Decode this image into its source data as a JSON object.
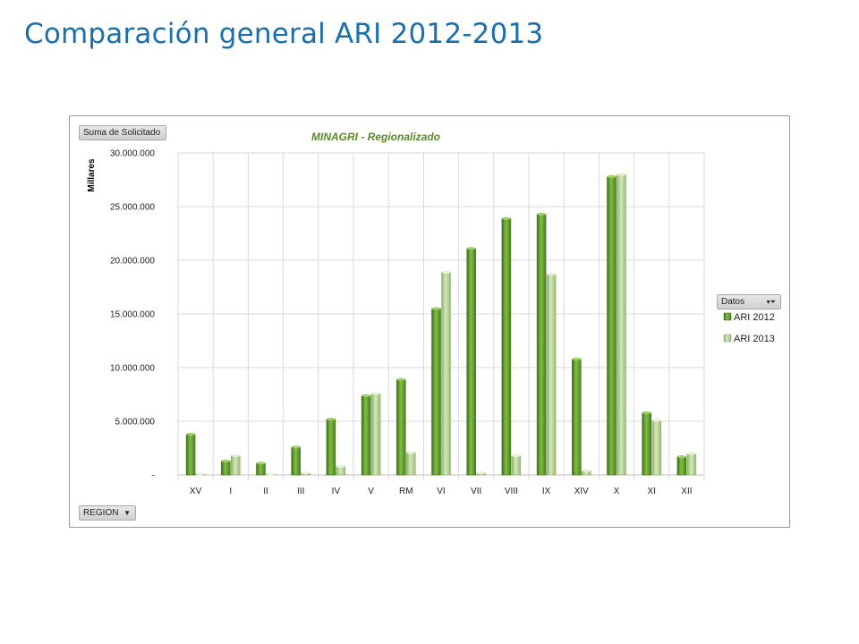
{
  "slide": {
    "title": "Comparación general ARI 2012-2013"
  },
  "colors": {
    "title": "#1a6fae",
    "flag_blue": "#0d5ea8",
    "flag_red": "#ee3a43",
    "series_2012": "#5b9a2b",
    "series_2013": "#b3d08f",
    "gridline": "#d9d9d9"
  },
  "pivot": {
    "measure_button": "Suma de Solicitado",
    "axis_button": "REGION",
    "legend_button": "Datos"
  },
  "chart_data": {
    "type": "bar",
    "title": "MINAGRI - Regionalizado",
    "ylabel": "Millares",
    "xlabel": "",
    "categories": [
      "XV",
      "I",
      "II",
      "III",
      "IV",
      "V",
      "RM",
      "VI",
      "VII",
      "VIII",
      "IX",
      "XIV",
      "X",
      "XI",
      "XII"
    ],
    "series": [
      {
        "name": "ARI 2012",
        "values": [
          3800000,
          1300000,
          1100000,
          2600000,
          5200000,
          7400000,
          8900000,
          15500000,
          21100000,
          23900000,
          24300000,
          10800000,
          27800000,
          5800000,
          1700000
        ]
      },
      {
        "name": "ARI 2013",
        "values": [
          100000,
          1800000,
          50000,
          200000,
          800000,
          7600000,
          2100000,
          18900000,
          200000,
          1800000,
          18700000,
          400000,
          28000000,
          5100000,
          2000000
        ]
      }
    ],
    "ylim": [
      0,
      30000000
    ],
    "yticks": [
      0,
      5000000,
      10000000,
      15000000,
      20000000,
      25000000,
      30000000
    ],
    "ytick_labels": [
      "-",
      "5.000.000",
      "10.000.000",
      "15.000.000",
      "20.000.000",
      "25.000.000",
      "30.000.000"
    ],
    "grid": true,
    "legend_position": "right"
  }
}
